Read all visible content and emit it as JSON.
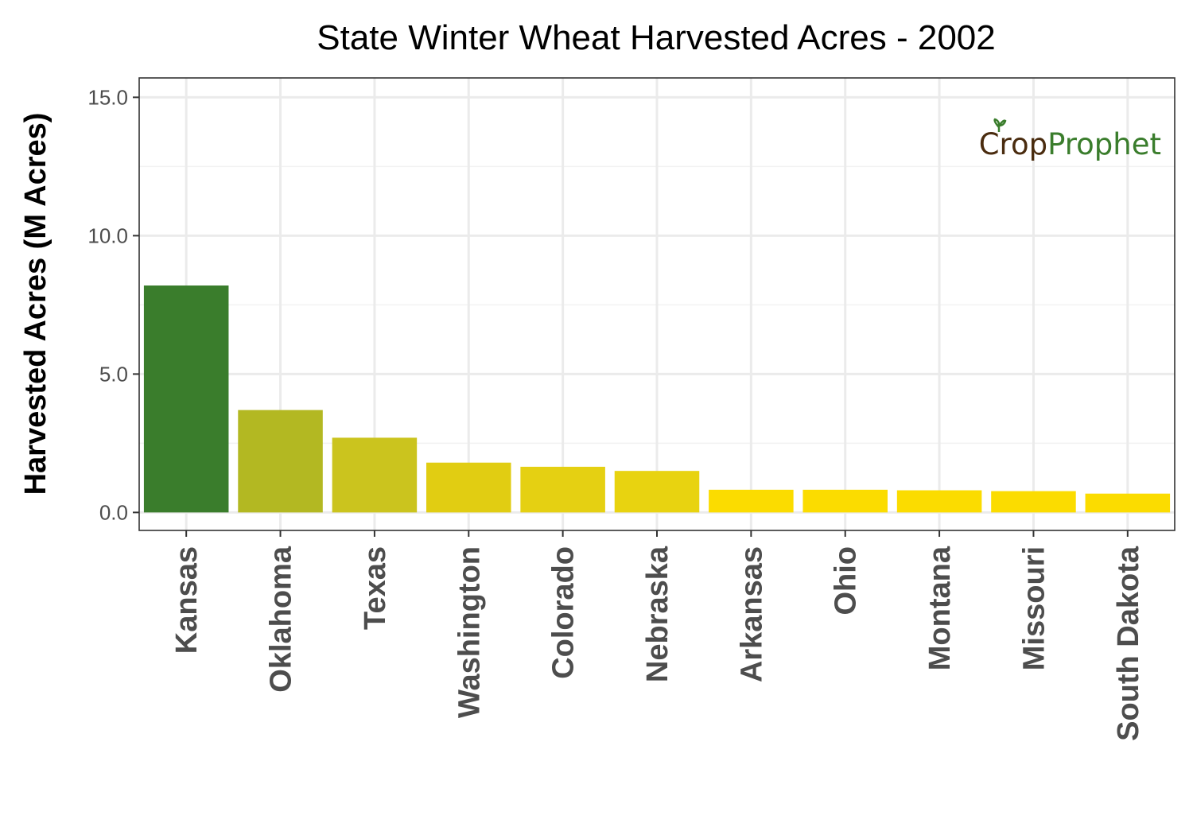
{
  "chart_data": {
    "type": "bar",
    "title": "State Winter Wheat Harvested Acres - 2002",
    "xlabel": "",
    "ylabel": "Harvested Acres (M Acres)",
    "categories": [
      "Kansas",
      "Oklahoma",
      "Texas",
      "Washington",
      "Colorado",
      "Nebraska",
      "Arkansas",
      "Ohio",
      "Montana",
      "Missouri",
      "South Dakota"
    ],
    "values": [
      8.2,
      3.7,
      2.7,
      1.8,
      1.65,
      1.5,
      0.82,
      0.82,
      0.8,
      0.77,
      0.68
    ],
    "bar_colors": [
      "#3a7d2c",
      "#b3b822",
      "#cbc41e",
      "#e1cd12",
      "#e5d012",
      "#e8d310",
      "#fbdc00",
      "#fbdc00",
      "#fbdc00",
      "#fbdc00",
      "#fbdc00"
    ],
    "ylim": [
      -0.65,
      15.7
    ],
    "yticks": [
      0,
      5,
      10,
      15
    ],
    "ytick_labels": [
      "0.0",
      "5.0",
      "10.0",
      "15.0"
    ],
    "grid": true,
    "legend": "none"
  },
  "watermark": {
    "part1": "Cr",
    "part2": "p",
    "part3": "Prophet",
    "color_dark": "#4a2c0f",
    "color_green": "#3a7d2c"
  }
}
